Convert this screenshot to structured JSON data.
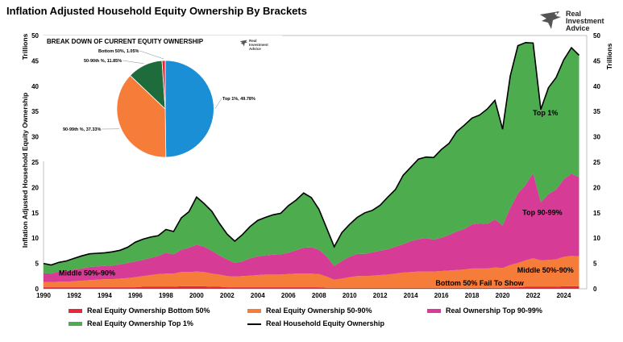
{
  "title": "Inflation Adjusted Household Equity Ownership By Brackets",
  "brand": {
    "line1": "Real",
    "line2": "Investment",
    "line3": "Advice",
    "icon": "eagle-logo-icon"
  },
  "pie": {
    "title": "BREAK DOWN OF CURRENT EQUITY OWNERSHIP",
    "brand": {
      "line1": "Real",
      "line2": "Investment",
      "line3": "Advice"
    },
    "slices": [
      {
        "label": "Top 1%, 49.78%",
        "value": 49.78,
        "color": "#1a8fd6"
      },
      {
        "label": "90-99th %, 37.33%",
        "value": 37.33,
        "color": "#f67c3a"
      },
      {
        "label": "50-90th %, 11.85%",
        "value": 11.85,
        "color": "#1e6b3c"
      },
      {
        "label": "Bottom 50%, 1.05%",
        "value": 1.05,
        "color": "#e8283a"
      }
    ]
  },
  "chart_data": {
    "type": "area",
    "ylabel": "Inflation Adjusted Household Equity Ownership",
    "ylabel_right": "Trillions",
    "ylabel_left_unit": "Trillions",
    "ylim": [
      0,
      50
    ],
    "yticks": [
      "0",
      "5",
      "10",
      "15",
      "20",
      "25",
      "30",
      "35",
      "40",
      "45",
      "50"
    ],
    "xlim": [
      1990,
      2025.5
    ],
    "xticks": [
      "1990",
      "1992",
      "1994",
      "1996",
      "1998",
      "2000",
      "2002",
      "2004",
      "2006",
      "2008",
      "2010",
      "2012",
      "2014",
      "2016",
      "2018",
      "2020",
      "2022",
      "2024"
    ],
    "x": [
      1990,
      1990.5,
      1991,
      1991.5,
      1992,
      1992.5,
      1993,
      1993.5,
      1994,
      1994.5,
      1995,
      1995.5,
      1996,
      1996.5,
      1997,
      1997.5,
      1998,
      1998.5,
      1999,
      1999.5,
      2000,
      2000.5,
      2001,
      2001.5,
      2002,
      2002.5,
      2003,
      2003.5,
      2004,
      2004.5,
      2005,
      2005.5,
      2006,
      2006.5,
      2007,
      2007.5,
      2008,
      2008.5,
      2009,
      2009.5,
      2010,
      2010.5,
      2011,
      2011.5,
      2012,
      2012.5,
      2013,
      2013.5,
      2014,
      2014.5,
      2015,
      2015.5,
      2016,
      2016.5,
      2017,
      2017.5,
      2018,
      2018.5,
      2019,
      2019.5,
      2020,
      2020.5,
      2021,
      2021.5,
      2022,
      2022.5,
      2023,
      2023.5,
      2024,
      2024.5,
      2025
    ],
    "series": [
      {
        "name": "Real Equity Ownership Bottom 50%",
        "color": "#e8283a",
        "values": [
          0.3,
          0.3,
          0.3,
          0.3,
          0.3,
          0.3,
          0.3,
          0.3,
          0.3,
          0.3,
          0.3,
          0.3,
          0.3,
          0.4,
          0.4,
          0.4,
          0.4,
          0.4,
          0.5,
          0.5,
          0.5,
          0.5,
          0.4,
          0.4,
          0.3,
          0.3,
          0.3,
          0.3,
          0.3,
          0.3,
          0.3,
          0.3,
          0.3,
          0.3,
          0.3,
          0.3,
          0.3,
          0.2,
          0.2,
          0.2,
          0.2,
          0.2,
          0.2,
          0.2,
          0.2,
          0.2,
          0.2,
          0.2,
          0.2,
          0.2,
          0.2,
          0.2,
          0.2,
          0.2,
          0.2,
          0.2,
          0.2,
          0.2,
          0.2,
          0.2,
          0.2,
          0.3,
          0.3,
          0.4,
          0.4,
          0.4,
          0.4,
          0.4,
          0.5,
          0.5,
          0.5
        ]
      },
      {
        "name": "Real Equity Ownership 50-90%",
        "color": "#f67c3a",
        "values": [
          1.0,
          1.0,
          1.1,
          1.1,
          1.2,
          1.3,
          1.4,
          1.5,
          1.6,
          1.6,
          1.7,
          1.8,
          2.0,
          2.1,
          2.3,
          2.5,
          2.6,
          2.6,
          2.8,
          2.8,
          2.9,
          2.8,
          2.6,
          2.4,
          2.2,
          2.1,
          2.2,
          2.3,
          2.4,
          2.5,
          2.5,
          2.5,
          2.6,
          2.7,
          2.7,
          2.7,
          2.6,
          2.2,
          1.6,
          1.8,
          2.1,
          2.3,
          2.3,
          2.4,
          2.5,
          2.6,
          2.8,
          3.0,
          3.1,
          3.2,
          3.2,
          3.2,
          3.3,
          3.4,
          3.5,
          3.6,
          3.8,
          3.8,
          3.8,
          4.0,
          3.9,
          4.4,
          4.8,
          5.2,
          5.6,
          5.2,
          5.3,
          5.4,
          5.8,
          6.0,
          5.9
        ]
      },
      {
        "name": "Real Ownership Top 90-99%",
        "color": "#d63b96",
        "values": [
          1.8,
          1.7,
          2.0,
          2.1,
          2.3,
          2.4,
          2.6,
          2.6,
          2.6,
          2.7,
          2.8,
          3.0,
          3.1,
          3.2,
          3.4,
          3.6,
          4.1,
          3.8,
          4.4,
          4.8,
          5.3,
          5.0,
          4.5,
          3.8,
          3.3,
          2.7,
          2.9,
          3.4,
          3.7,
          3.8,
          3.9,
          4.0,
          4.2,
          4.6,
          5.1,
          5.2,
          4.8,
          4.0,
          2.7,
          3.5,
          4.0,
          4.4,
          4.4,
          4.6,
          4.8,
          5.0,
          5.3,
          5.6,
          6.1,
          6.4,
          6.6,
          6.3,
          6.6,
          7.0,
          7.6,
          8.0,
          8.7,
          8.9,
          8.8,
          9.5,
          8.4,
          11.2,
          13.7,
          14.9,
          16.8,
          11.5,
          13.0,
          13.8,
          15.3,
          16.2,
          15.6
        ]
      },
      {
        "name": "Real Equity Ownership Top 1%",
        "color": "#4dac4d",
        "values": [
          1.9,
          1.7,
          1.8,
          2.0,
          2.2,
          2.5,
          2.6,
          2.6,
          2.6,
          2.7,
          2.8,
          3.1,
          3.8,
          4.1,
          4.1,
          4.0,
          4.6,
          4.5,
          6.3,
          7.1,
          9.4,
          8.5,
          7.8,
          6.3,
          5.0,
          4.3,
          5.3,
          6.3,
          7.1,
          7.5,
          7.9,
          8.1,
          9.3,
          9.9,
          10.8,
          9.8,
          8.0,
          5.6,
          3.8,
          5.6,
          6.4,
          7.2,
          8.1,
          8.3,
          9.0,
          10.3,
          11.3,
          13.6,
          14.6,
          15.8,
          16.0,
          16.2,
          17.4,
          18.1,
          19.7,
          20.5,
          21.0,
          21.4,
          22.7,
          23.5,
          19.0,
          26.1,
          29.2,
          28.1,
          25.7,
          18.3,
          21.0,
          22.1,
          23.6,
          24.9,
          24.1
        ]
      }
    ],
    "total": {
      "name": "Real Household Equity Ownership",
      "color": "#000000",
      "values": [
        5.0,
        4.7,
        5.2,
        5.5,
        6.0,
        6.5,
        6.9,
        7.0,
        7.1,
        7.3,
        7.6,
        8.2,
        9.2,
        9.8,
        10.2,
        10.5,
        11.7,
        11.3,
        14.0,
        15.2,
        18.1,
        16.8,
        15.3,
        12.9,
        10.8,
        9.4,
        10.7,
        12.3,
        13.5,
        14.1,
        14.6,
        14.9,
        16.4,
        17.5,
        18.9,
        18.0,
        15.7,
        12.0,
        8.3,
        11.1,
        12.7,
        14.1,
        15.0,
        15.5,
        16.5,
        18.1,
        19.6,
        22.4,
        24.0,
        25.6,
        26.0,
        25.9,
        27.5,
        28.7,
        31.0,
        32.3,
        33.7,
        34.3,
        35.5,
        37.2,
        31.5,
        42.0,
        48.0,
        48.6,
        48.5,
        35.4,
        39.7,
        41.7,
        45.2,
        47.6,
        46.1
      ]
    },
    "area_labels": [
      {
        "text": "Top 1%",
        "x": 2022.8,
        "y": 34.2
      },
      {
        "text": "Top 90-99%",
        "x": 2022.6,
        "y": 14.6
      },
      {
        "text": "Middle 50%-90%",
        "x": 2022.8,
        "y": 3.2
      },
      {
        "text": "Middle 50%-90%",
        "x": 1991.0,
        "y": 2.6
      },
      {
        "text": "Bottom 50% Fail To Show",
        "x": 2018.5,
        "y": 0.6
      }
    ],
    "legend": [
      {
        "label": "Real Equity Ownership Bottom 50%",
        "color": "#e8283a",
        "kind": "swatch"
      },
      {
        "label": "Real Equity Ownership 50-90%",
        "color": "#f67c3a",
        "kind": "swatch"
      },
      {
        "label": "Real Ownership Top 90-99%",
        "color": "#d63b96",
        "kind": "swatch"
      },
      {
        "label": "Real Equity Ownership Top 1%",
        "color": "#4dac4d",
        "kind": "swatch"
      },
      {
        "label": "Real Household Equity Ownership",
        "color": "#000000",
        "kind": "line"
      }
    ],
    "legend_position": "bottom"
  }
}
